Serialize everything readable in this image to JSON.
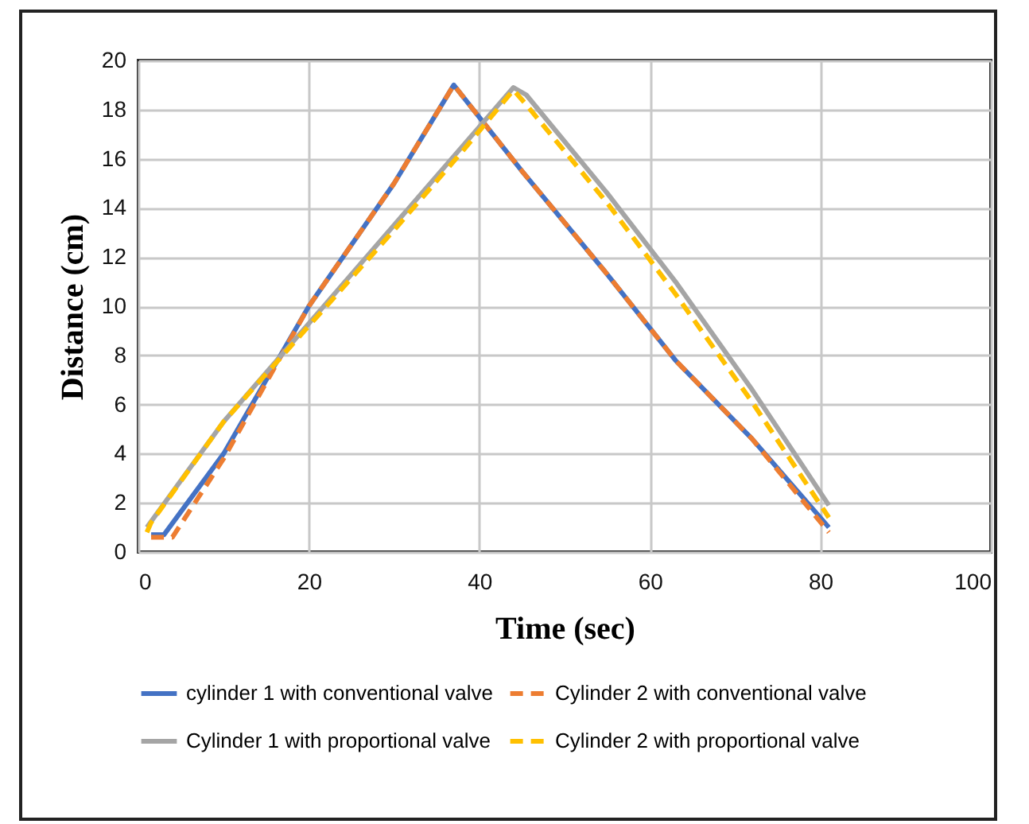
{
  "chart_data": {
    "type": "line",
    "xlabel": "Time (sec)",
    "ylabel": "Distance (cm)",
    "xlim": [
      0,
      100
    ],
    "xticks": [
      0,
      20,
      40,
      60,
      80,
      100
    ],
    "ylim": [
      0,
      20
    ],
    "yticks": [
      0,
      2,
      4,
      6,
      8,
      10,
      12,
      14,
      16,
      18,
      20
    ],
    "grid": true,
    "legend": "bottom",
    "series": [
      {
        "name": "cylinder 1 with conventional valve",
        "color": "#4472c4",
        "line_style": "solid",
        "x": [
          1.5,
          3,
          10,
          20,
          30,
          37,
          45,
          55,
          63,
          72,
          81
        ],
        "values": [
          0.7,
          0.7,
          4,
          10,
          15,
          19,
          15.5,
          11.3,
          7.8,
          4.6,
          1.0
        ]
      },
      {
        "name": "Cylinder 2 with conventional valve",
        "color": "#ed7d31",
        "line_style": "dashed",
        "x": [
          1.5,
          4,
          10,
          20,
          30,
          37,
          45,
          55,
          63,
          72,
          81
        ],
        "values": [
          0.6,
          0.6,
          3.8,
          10,
          15,
          19,
          15.5,
          11.3,
          7.8,
          4.6,
          0.8
        ]
      },
      {
        "name": "Cylinder 1 with proportional valve",
        "color": "#a5a5a5",
        "line_style": "solid",
        "x": [
          1,
          10,
          20,
          30,
          38,
          44,
          45.5,
          55,
          63,
          72,
          81
        ],
        "values": [
          1.0,
          5.3,
          9.3,
          13.3,
          16.5,
          18.9,
          18.6,
          14.6,
          11,
          6.6,
          1.9
        ]
      },
      {
        "name": "Cylinder  2 with proportional valve",
        "color": "#ffc000",
        "line_style": "dashed",
        "x": [
          1,
          1.5,
          10,
          20,
          30,
          38,
          44,
          45.5,
          55,
          63,
          72,
          81
        ],
        "values": [
          0.8,
          1.2,
          5.3,
          9.2,
          13.1,
          16.3,
          18.8,
          18.2,
          14.2,
          10.5,
          6.1,
          1.4
        ]
      }
    ]
  }
}
